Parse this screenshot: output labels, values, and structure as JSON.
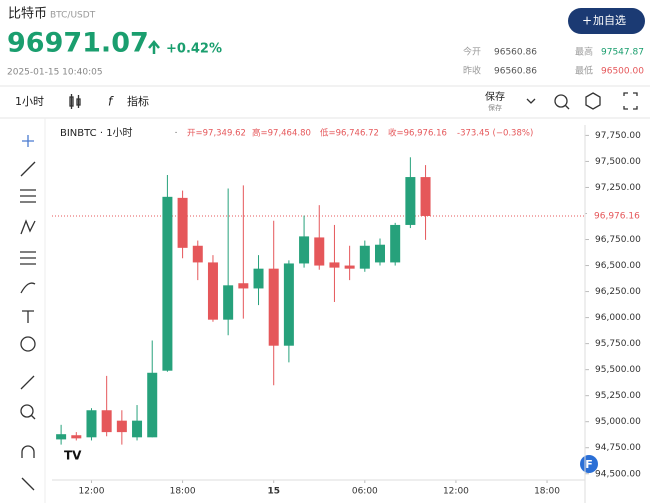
{
  "header": {
    "title": "比特币",
    "pair": "BTC/USDT",
    "price": "96971.07",
    "change": "+0.42%",
    "datetime": "2025-01-15 10:40:05",
    "button": "加自选",
    "stats": [
      {
        "label": "今开",
        "value": "96560.86"
      },
      {
        "label": "最高",
        "value": "97547.87"
      },
      {
        "label": "昨收",
        "value": "96560.86"
      },
      {
        "label": "最低",
        "value": "96500.00"
      }
    ]
  },
  "toolbar": {
    "interval": "1小时",
    "indicators": "指标",
    "save": "保存",
    "save_sub": "保存"
  },
  "chart_data": {
    "type": "candlestick",
    "title": "BINBTC · 1小时",
    "legend": [
      "开=97,349.62",
      "高=97,464.80",
      "低=96,746.72",
      "收=96,976.16",
      "-373.45 (−0.38%)"
    ],
    "x": [
      10,
      11,
      12,
      13,
      14,
      15,
      16,
      17,
      18,
      19,
      20,
      21,
      22,
      23,
      24,
      25,
      26,
      27,
      28,
      29,
      30,
      31,
      32,
      33,
      34
    ],
    "open": [
      94830,
      94870,
      94850,
      95110,
      95010,
      94850,
      94850,
      95490,
      97150,
      96690,
      96530,
      95980,
      96330,
      96280,
      96470,
      95730,
      96520,
      96770,
      96530,
      96500,
      96470,
      96530,
      96530,
      96890,
      97349.62
    ],
    "high": [
      94970,
      94900,
      95130,
      95440,
      95110,
      95160,
      95780,
      97370,
      97220,
      96740,
      96600,
      97240,
      97270,
      96600,
      96930,
      96550,
      96980,
      97080,
      96890,
      96690,
      96740,
      96760,
      96910,
      97540,
      97464.8
    ],
    "low": [
      94780,
      94820,
      94820,
      94860,
      94780,
      94820,
      94850,
      95480,
      96570,
      96360,
      95960,
      95830,
      95990,
      96120,
      95350,
      95570,
      96480,
      96460,
      96150,
      96360,
      96440,
      96500,
      96500,
      96860,
      96746.72
    ],
    "close": [
      94880,
      94840,
      95110,
      94900,
      94900,
      95010,
      95470,
      97160,
      96670,
      96530,
      95980,
      96310,
      96280,
      96470,
      95730,
      96520,
      96780,
      96500,
      96480,
      96470,
      96690,
      96700,
      96890,
      97350,
      96976.16
    ],
    "up_color": "#26a17b",
    "down_color": "#e5575a",
    "last_price": {
      "value": 96976.16,
      "label": "96,976.16"
    },
    "xlim": [
      9.4,
      44.5
    ],
    "xticks": [
      {
        "value": 12,
        "label": "12:00"
      },
      {
        "value": 18,
        "label": "18:00"
      },
      {
        "value": 24,
        "label": "15"
      },
      {
        "value": 30,
        "label": "06:00"
      },
      {
        "value": 36,
        "label": "12:00"
      },
      {
        "value": 42,
        "label": "18:00"
      }
    ],
    "ylim": [
      94440,
      97850
    ],
    "yticks": [
      {
        "value": 94500,
        "label": "94,500.00"
      },
      {
        "value": 94750,
        "label": "94,750.00"
      },
      {
        "value": 95000,
        "label": "95,000.00"
      },
      {
        "value": 95250,
        "label": "95,250.00"
      },
      {
        "value": 95500,
        "label": "95,500.00"
      },
      {
        "value": 95750,
        "label": "95,750.00"
      },
      {
        "value": 96000,
        "label": "96,000.00"
      },
      {
        "value": 96250,
        "label": "96,250.00"
      },
      {
        "value": 96500,
        "label": "96,500.00"
      },
      {
        "value": 96750,
        "label": "96,750.00"
      },
      {
        "value": 97000,
        "label": "97,000.00"
      },
      {
        "value": 97250,
        "label": "97,250.00"
      },
      {
        "value": 97500,
        "label": "97,500.00"
      },
      {
        "value": 97750,
        "label": "97,750.00"
      }
    ]
  }
}
